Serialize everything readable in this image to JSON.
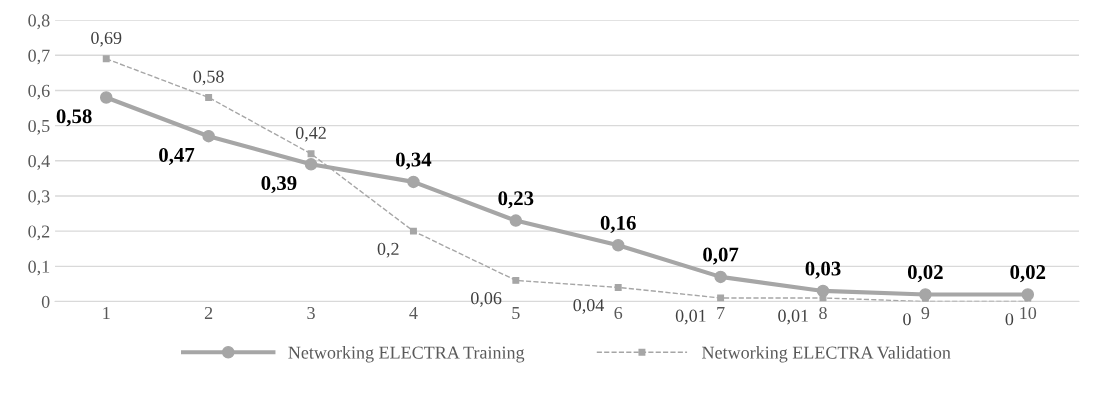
{
  "chart_data": {
    "type": "line",
    "categories": [
      "1",
      "2",
      "3",
      "4",
      "5",
      "6",
      "7",
      "8",
      "9",
      "10"
    ],
    "ylim": [
      0,
      0.8
    ],
    "yticks": [
      0,
      {
        "value": 0.1,
        "label": "0,1"
      },
      {
        "value": 0.2,
        "label": "0,2"
      },
      {
        "value": 0.3,
        "label": "0,3"
      },
      {
        "value": 0.4,
        "label": "0,4"
      },
      {
        "value": 0.5,
        "label": "0,5"
      },
      {
        "value": 0.6,
        "label": "0,6"
      },
      {
        "value": 0.7,
        "label": "0,7"
      },
      {
        "value": 0.8,
        "label": "0,8"
      }
    ],
    "grid": "y",
    "legend": "bottom",
    "series": [
      {
        "name": "Networking ELECTRA Training",
        "color": "#a6a6a6",
        "marker": "circle",
        "line_style": "solid",
        "values": [
          0.58,
          0.47,
          0.39,
          0.34,
          0.23,
          0.16,
          0.07,
          0.03,
          0.02,
          0.02
        ],
        "value_labels": [
          "0,58",
          "0,47",
          "0,39",
          "0,34",
          "0,23",
          "0,16",
          "0,07",
          "0,03",
          "0,02",
          "0,02"
        ]
      },
      {
        "name": "Networking ELECTRA Validation",
        "color": "#a6a6a6",
        "marker": "square",
        "line_style": "dashed",
        "values": [
          0.69,
          0.58,
          0.42,
          0.2,
          0.06,
          0.04,
          0.01,
          0.01,
          0,
          0
        ],
        "value_labels": [
          "0,69",
          "0,58",
          "0,42",
          "0,2",
          "0,06",
          "0,04",
          "0,01",
          "0,01",
          "0",
          "0"
        ]
      }
    ]
  }
}
